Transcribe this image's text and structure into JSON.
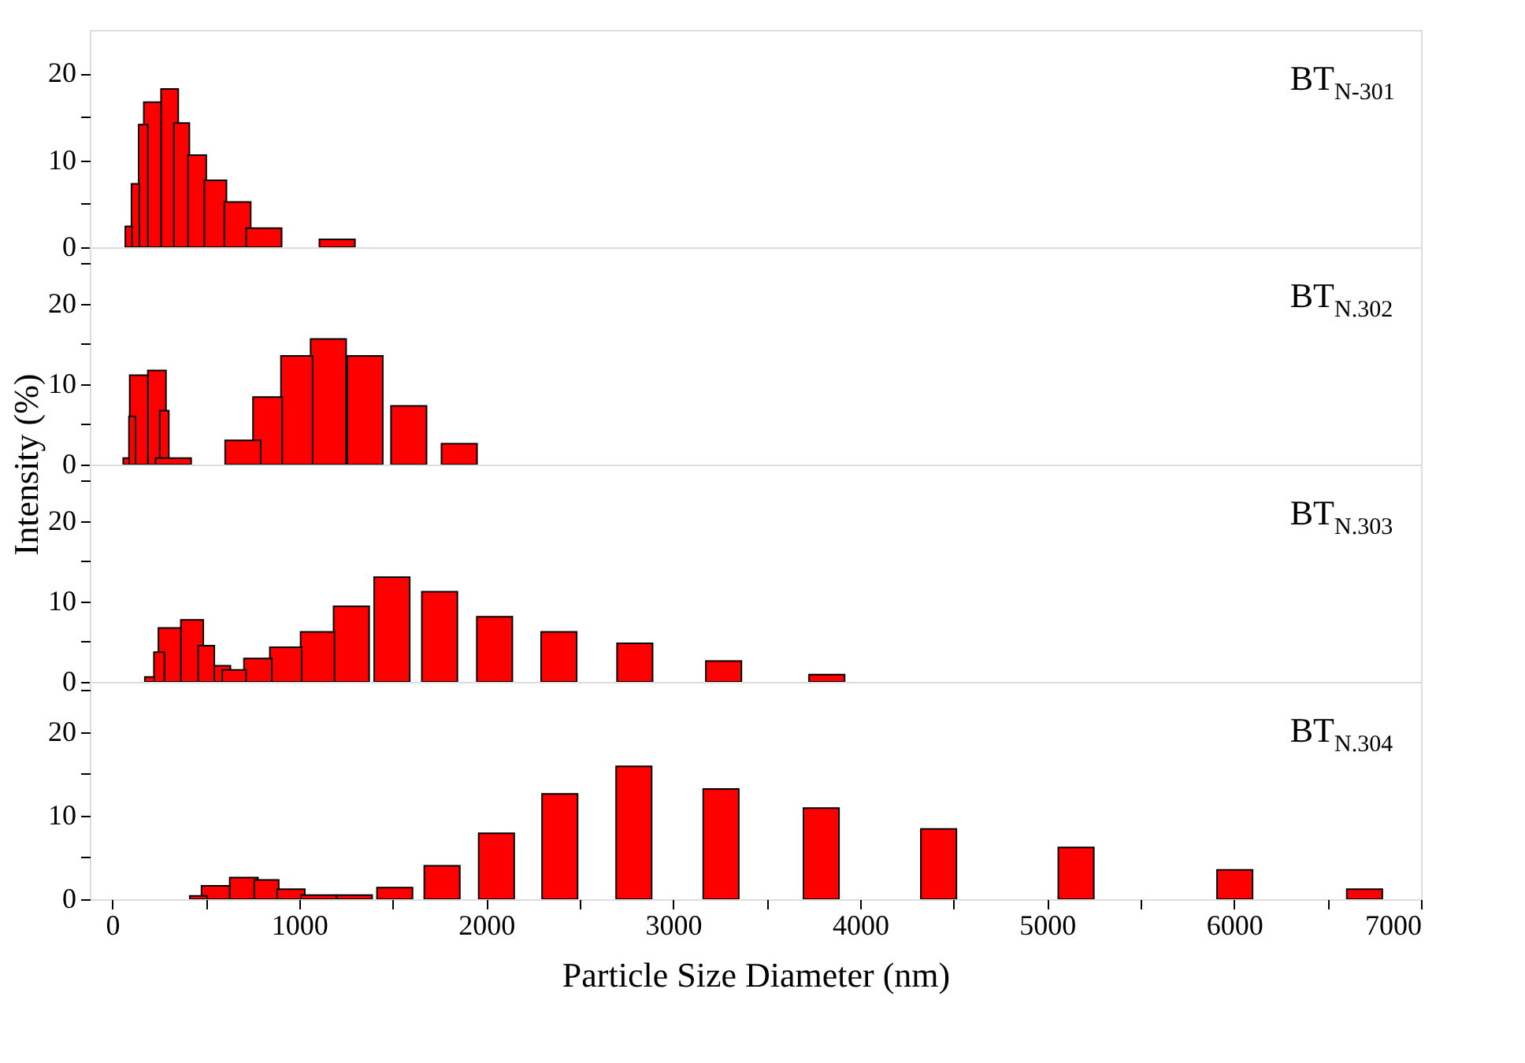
{
  "chart_data": [
    {
      "type": "bar",
      "color": "#ff0000",
      "ylabel": "Intensity (%)",
      "annotations": [
        "BT$_{N-301}$"
      ],
      "xlim": [
        -120,
        7000
      ],
      "ylim": [
        0,
        25
      ],
      "yticks": [
        0,
        {
          "value": 5,
          "label": null
        },
        10,
        {
          "value": 15,
          "label": null
        },
        20
      ],
      "tick_labels": "y",
      "grid": false,
      "x": [
        88,
        124,
        166,
        215,
        307,
        371,
        454,
        552,
        670,
        811,
        1203
      ],
      "values": [
        2.4,
        7.3,
        14.1,
        16.7,
        18.2,
        14.3,
        10.6,
        7.7,
        5.2,
        2.2,
        0.9
      ]
    },
    {
      "type": "bar",
      "color": "#ff0000",
      "annotations": [
        "BT$_{N.302}$"
      ],
      "xlim": [
        -120,
        7000
      ],
      "ylim": [
        0,
        27
      ],
      "yticks": [
        0,
        {
          "value": 5,
          "label": null
        },
        10,
        {
          "value": 15,
          "label": null
        },
        20,
        {
          "value": 25,
          "label": null
        }
      ],
      "tick_labels": "y",
      "grid": false,
      "x": [
        75,
        107,
        142,
        239,
        278,
        327,
        699,
        831,
        987,
        1156,
        1352,
        1586,
        1856
      ],
      "values": [
        0.8,
        6.0,
        11.1,
        11.7,
        6.7,
        0.8,
        3.0,
        8.4,
        13.5,
        15.6,
        13.5,
        7.3,
        2.6
      ]
    },
    {
      "type": "bar",
      "color": "#ff0000",
      "annotations": [
        "BT$_{N.303}$"
      ],
      "xlim": [
        -120,
        7000
      ],
      "ylim": [
        0,
        27
      ],
      "yticks": [
        0,
        {
          "value": 5,
          "label": null
        },
        10,
        {
          "value": 15,
          "label": null
        },
        20,
        {
          "value": 25,
          "label": null
        }
      ],
      "tick_labels": "y",
      "grid": false,
      "x": [
        200,
        251,
        307,
        427,
        503,
        589,
        652,
        779,
        928,
        1098,
        1279,
        1496,
        1751,
        2045,
        2389,
        2795,
        3270,
        3822
      ],
      "values": [
        0.6,
        3.7,
        6.7,
        7.7,
        4.5,
        2.0,
        1.5,
        2.9,
        4.3,
        6.2,
        9.4,
        13.0,
        11.2,
        8.1,
        6.2,
        4.8,
        2.6,
        0.9
      ]
    },
    {
      "type": "bar",
      "color": "#ff0000",
      "xlabel": "Particle Size Diameter (nm)",
      "annotations": [
        "BT$_{N.304}$"
      ],
      "xlim": [
        -120,
        7000
      ],
      "ylim": [
        0,
        26
      ],
      "xticks": [
        0,
        {
          "value": 500,
          "label": null
        },
        1000,
        {
          "value": 1500,
          "label": null
        },
        2000,
        {
          "value": 2500,
          "label": null
        },
        3000,
        {
          "value": 3500,
          "label": null
        },
        4000,
        {
          "value": 4500,
          "label": null
        },
        5000,
        {
          "value": 5500,
          "label": null
        },
        6000,
        {
          "value": 6500,
          "label": null
        },
        7000
      ],
      "yticks": [
        0,
        {
          "value": 5,
          "label": null
        },
        10,
        {
          "value": 15,
          "label": null
        },
        20,
        {
          "value": 25,
          "label": null
        }
      ],
      "grid": false,
      "x": [
        461,
        553,
        704,
        825,
        956,
        1104,
        1295,
        1511,
        1764,
        2055,
        2394,
        2790,
        3256,
        3792,
        4420,
        5155,
        6004,
        6698
      ],
      "values": [
        0.4,
        1.6,
        2.6,
        2.3,
        1.2,
        0.5,
        0.5,
        1.4,
        4.0,
        7.9,
        12.6,
        15.9,
        13.2,
        10.9,
        8.4,
        6.2,
        3.5,
        1.2
      ]
    }
  ]
}
